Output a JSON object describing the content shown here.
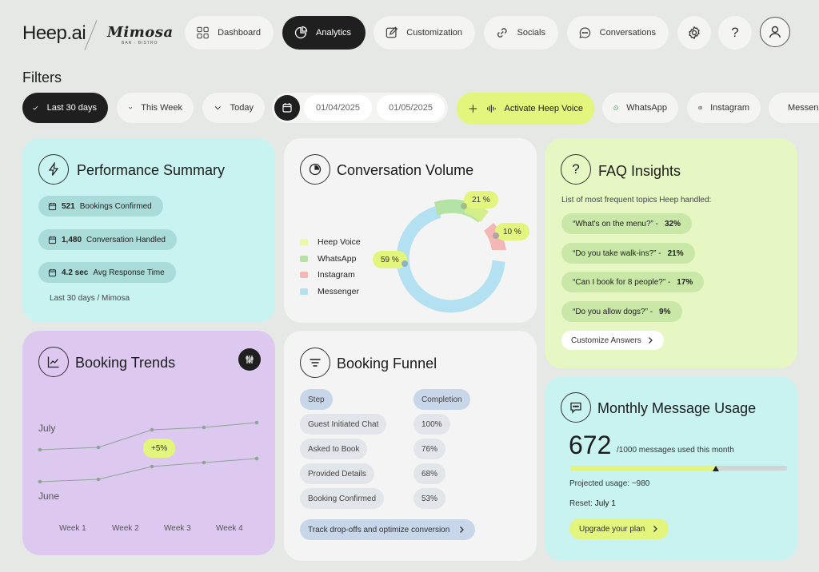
{
  "header": {
    "logo": "Heep.ai",
    "brand": "Mimosa",
    "brand_sub": "BAR · BISTRO",
    "nav": [
      {
        "label": "Dashboard",
        "icon": "grid-icon",
        "active": false
      },
      {
        "label": "Analytics",
        "icon": "pie-chart-icon",
        "active": true
      },
      {
        "label": "Customization",
        "icon": "edit-icon",
        "active": false
      },
      {
        "label": "Socials",
        "icon": "link-icon",
        "active": false
      },
      {
        "label": "Conversations",
        "icon": "chat-bubble-icon",
        "active": false
      }
    ],
    "settings_icon": "gear-icon",
    "help_label": "?",
    "user_icon": "user-icon"
  },
  "filters": {
    "title": "Filters",
    "chips": [
      {
        "label": "Last 30 days",
        "selected": true
      },
      {
        "label": "This Week",
        "selected": false
      },
      {
        "label": "Today",
        "selected": false
      }
    ],
    "date_from": "01/04/2025",
    "date_to": "01/05/2025",
    "activate_voice": "Activate Heep Voice",
    "channels": [
      "WhatsApp",
      "Instagram",
      "Messenger"
    ]
  },
  "performance": {
    "title": "Performance Summary",
    "stats": [
      {
        "value": "521",
        "label": "Bookings Confirmed"
      },
      {
        "value": "1,480",
        "label": "Conversation Handled"
      },
      {
        "value": "4.2 sec",
        "label": "Avg Response Time"
      }
    ],
    "footer": "Last 30 days / Mimosa"
  },
  "conversation_volume": {
    "title": "Conversation Volume",
    "legend": [
      {
        "label": "Heep Voice",
        "color": "#eef7a6"
      },
      {
        "label": "WhatsApp",
        "color": "#b5e3a6"
      },
      {
        "label": "Instagram",
        "color": "#f3b7b5"
      },
      {
        "label": "Messenger",
        "color": "#b3e1f2"
      }
    ],
    "labels": {
      "voice": "21 %",
      "instagram": "10 %",
      "messenger": "59 %"
    }
  },
  "faq": {
    "title": "FAQ Insights",
    "subtitle": "List of most frequent topics Heep handled:",
    "items": [
      {
        "q": "“What's on the menu?”  -",
        "pct": "32%"
      },
      {
        "q": "“Do you take walk-ins?”  -",
        "pct": "21%"
      },
      {
        "q": "“Can I book for 8 people?”  -",
        "pct": "17%"
      },
      {
        "q": "“Do you allow dogs?”  -",
        "pct": "9%"
      }
    ],
    "cta": "Customize Answers"
  },
  "booking_trends": {
    "title": "Booking Trends",
    "series_top": "July",
    "series_bottom": "June",
    "badge": "+5%",
    "weeks": [
      "Week 1",
      "Week 2",
      "Week 3",
      "Week 4"
    ]
  },
  "funnel": {
    "title": "Booking Funnel",
    "head": {
      "step": "Step",
      "completion": "Completion"
    },
    "rows": [
      {
        "step": "Guest Initiated Chat",
        "completion": "100%"
      },
      {
        "step": "Asked to Book",
        "completion": "76%"
      },
      {
        "step": "Provided Details",
        "completion": "68%"
      },
      {
        "step": "Booking Confirmed",
        "completion": "53%"
      }
    ],
    "cta": "Track drop-offs and optimize conversion"
  },
  "usage": {
    "title": "Monthly Message Usage",
    "used": "672",
    "of_text": "/1000 messages used this month",
    "progress": 0.672,
    "projected": "Projected usage: ~980",
    "reset_label": "Reset:",
    "reset_value": "July 1",
    "cta": "Upgrade your plan"
  }
}
